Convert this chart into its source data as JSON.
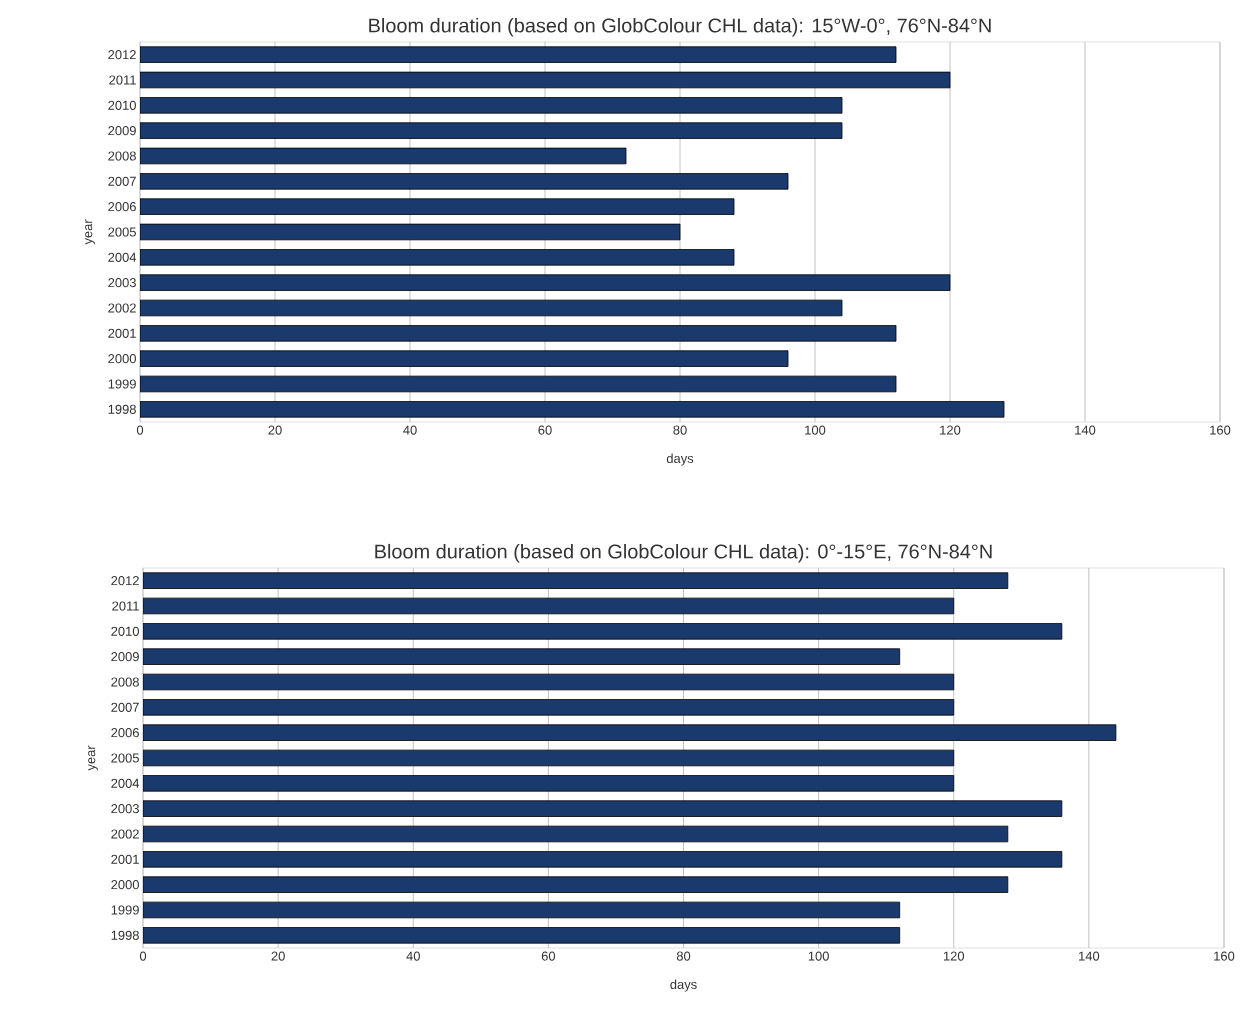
{
  "chart_data": [
    {
      "type": "bar",
      "orientation": "horizontal",
      "title": "Bloom duration (based on GlobColour CHL data): 15°W-0°, 76°N-84°N",
      "xlabel": "days",
      "ylabel": "year",
      "categories": [
        "2012",
        "2011",
        "2010",
        "2009",
        "2008",
        "2007",
        "2006",
        "2005",
        "2004",
        "2003",
        "2002",
        "2001",
        "2000",
        "1999",
        "1998"
      ],
      "values": [
        112,
        120,
        104,
        104,
        72,
        96,
        88,
        80,
        88,
        120,
        104,
        112,
        96,
        112,
        128
      ],
      "color": "#1a3a6e",
      "xlim": [
        0,
        160
      ],
      "xticks": [
        0,
        20,
        40,
        60,
        80,
        100,
        120,
        140,
        160
      ],
      "grid": "x"
    },
    {
      "type": "bar",
      "orientation": "horizontal",
      "title": "Bloom duration (based on GlobColour CHL data): 0°-15°E, 76°N-84°N",
      "xlabel": "days",
      "ylabel": "year",
      "categories": [
        "2012",
        "2011",
        "2010",
        "2009",
        "2008",
        "2007",
        "2006",
        "2005",
        "2004",
        "2003",
        "2002",
        "2001",
        "2000",
        "1999",
        "1998"
      ],
      "values": [
        128,
        120,
        136,
        112,
        120,
        120,
        144,
        120,
        120,
        136,
        128,
        136,
        128,
        112,
        112
      ],
      "color": "#1a3a6e",
      "xlim": [
        0,
        160
      ],
      "xticks": [
        0,
        20,
        40,
        60,
        80,
        100,
        120,
        140,
        160
      ],
      "grid": "x"
    }
  ]
}
